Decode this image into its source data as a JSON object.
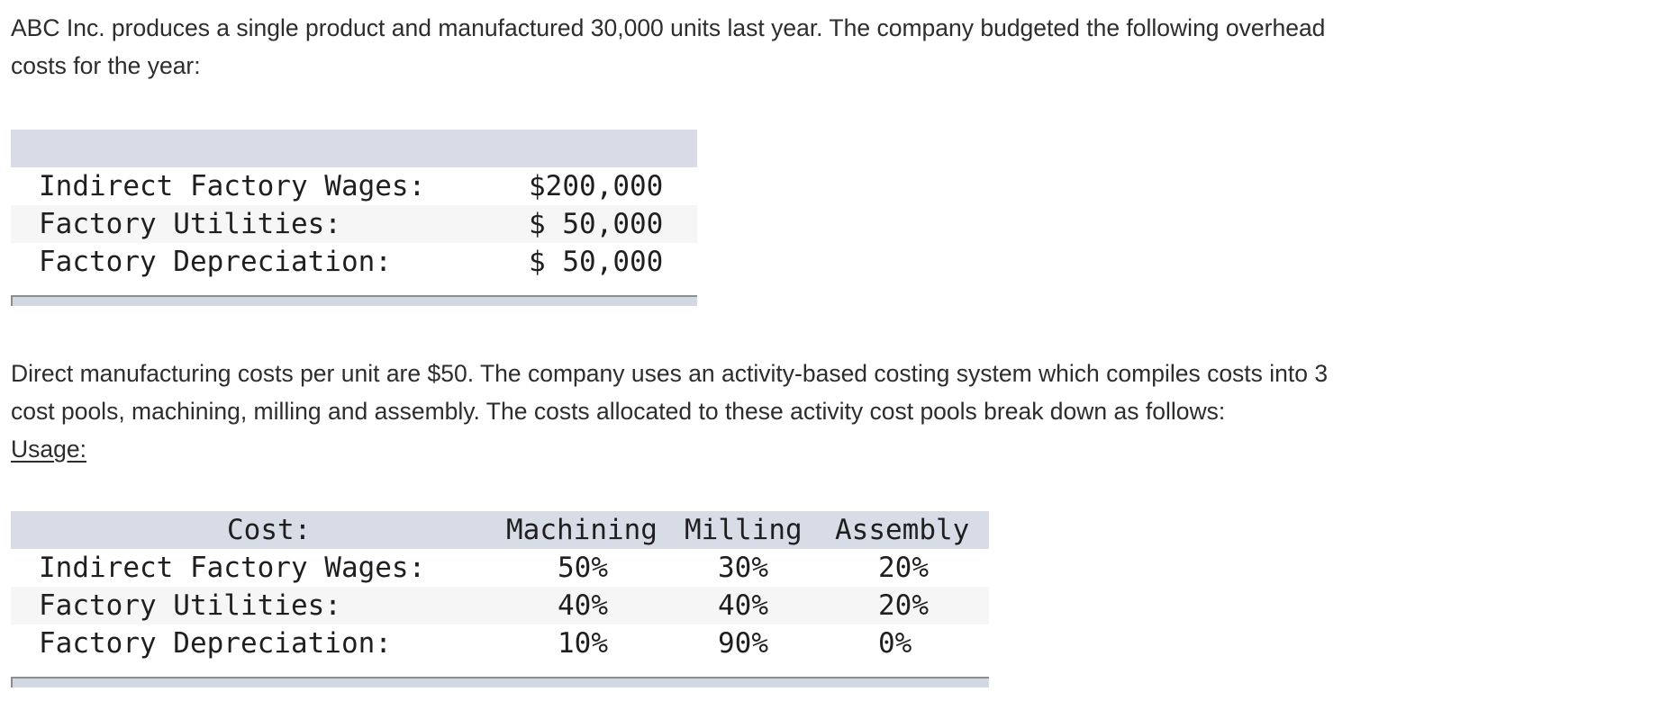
{
  "intro": {
    "line1": "ABC Inc. produces a single product and manufactured 30,000 units last year. The company budgeted the following overhead",
    "line2": "costs for the year:"
  },
  "overhead_table": {
    "rows": [
      {
        "label": "Indirect Factory Wages:",
        "amount": "$200,000"
      },
      {
        "label": "Factory Utilities:",
        "amount": "$ 50,000"
      },
      {
        "label": "Factory Depreciation:",
        "amount": "$ 50,000"
      }
    ]
  },
  "description": {
    "line1": "Direct manufacturing costs per unit are $50. The company uses an activity-based costing system which compiles costs into 3",
    "line2": "cost pools, machining, milling and assembly. The costs allocated to these activity cost pools break down as follows:",
    "usage_label": "Usage:"
  },
  "allocation_table": {
    "headers": {
      "cost": "Cost:",
      "machining": "Machining",
      "milling": "Milling",
      "assembly": "Assembly"
    },
    "rows": [
      {
        "label": "Indirect Factory Wages:",
        "machining": "50%",
        "milling": "30%",
        "assembly": "20%"
      },
      {
        "label": "Factory Utilities:",
        "machining": "40%",
        "milling": "40%",
        "assembly": "20%"
      },
      {
        "label": "Factory Depreciation:",
        "machining": "10%",
        "milling": "90%",
        "assembly": "0%"
      }
    ]
  }
}
